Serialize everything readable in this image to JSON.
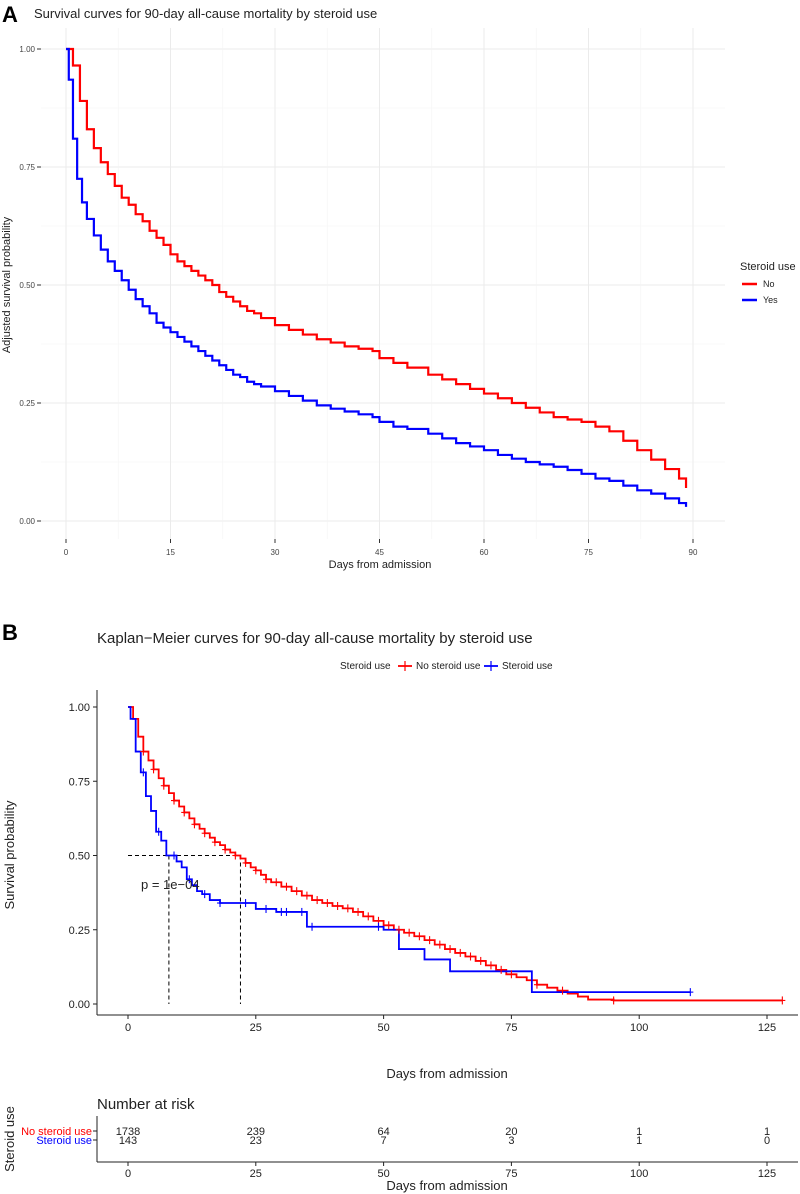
{
  "panel_a": {
    "label": "A"
  },
  "panel_b": {
    "label": "B"
  },
  "chart_data": [
    {
      "type": "line",
      "title": "Survival curves for 90-day all-cause mortality by steroid use",
      "xlabel": "Days from admission",
      "ylabel": "Adjusted survival probability",
      "xlim": [
        0,
        90
      ],
      "ylim": [
        0,
        1
      ],
      "xticks": [
        "0",
        "15",
        "30",
        "45",
        "60",
        "75",
        "90"
      ],
      "yticks": [
        "0.00",
        "0.25",
        "0.50",
        "0.75",
        "1.00"
      ],
      "grid": true,
      "legend": {
        "title": "Steroid use",
        "position": "right",
        "entries": [
          "No",
          "Yes"
        ]
      },
      "series": [
        {
          "name": "No",
          "color": "#ff0000",
          "x": [
            0,
            1,
            2,
            3,
            4,
            5,
            6,
            7,
            8,
            9,
            10,
            11,
            12,
            13,
            14,
            15,
            16,
            17,
            18,
            19,
            20,
            21,
            22,
            23,
            24,
            25,
            26,
            27,
            28,
            30,
            32,
            34,
            36,
            38,
            40,
            42,
            44,
            45,
            47,
            49,
            52,
            54,
            56,
            58,
            60,
            62,
            64,
            66,
            68,
            70,
            72,
            74,
            76,
            78,
            80,
            82,
            84,
            86,
            88,
            89
          ],
          "y": [
            1.0,
            0.965,
            0.89,
            0.83,
            0.79,
            0.76,
            0.735,
            0.71,
            0.685,
            0.67,
            0.65,
            0.635,
            0.615,
            0.6,
            0.585,
            0.565,
            0.55,
            0.54,
            0.53,
            0.52,
            0.51,
            0.5,
            0.485,
            0.475,
            0.465,
            0.455,
            0.445,
            0.44,
            0.43,
            0.415,
            0.405,
            0.395,
            0.385,
            0.378,
            0.37,
            0.365,
            0.36,
            0.345,
            0.335,
            0.325,
            0.31,
            0.3,
            0.29,
            0.28,
            0.27,
            0.26,
            0.25,
            0.24,
            0.23,
            0.22,
            0.215,
            0.21,
            0.2,
            0.19,
            0.17,
            0.15,
            0.13,
            0.11,
            0.09,
            0.07
          ]
        },
        {
          "name": "Yes",
          "color": "#0000ff",
          "x": [
            0,
            0.4,
            1,
            1.6,
            2.3,
            3,
            4,
            5,
            6,
            7,
            8,
            9,
            10,
            11,
            12,
            13,
            14,
            15,
            16,
            17,
            18,
            19,
            20,
            21,
            22,
            23,
            24,
            25,
            26,
            27,
            28,
            30,
            32,
            34,
            36,
            38,
            40,
            42,
            44,
            45,
            47,
            49,
            52,
            54,
            56,
            58,
            60,
            62,
            64,
            66,
            68,
            70,
            72,
            74,
            76,
            78,
            80,
            82,
            84,
            86,
            88,
            89
          ],
          "y": [
            1.0,
            0.935,
            0.81,
            0.725,
            0.675,
            0.64,
            0.605,
            0.575,
            0.55,
            0.53,
            0.51,
            0.49,
            0.47,
            0.455,
            0.44,
            0.42,
            0.41,
            0.4,
            0.39,
            0.38,
            0.37,
            0.36,
            0.35,
            0.34,
            0.33,
            0.32,
            0.31,
            0.305,
            0.295,
            0.29,
            0.285,
            0.275,
            0.265,
            0.255,
            0.245,
            0.238,
            0.232,
            0.226,
            0.22,
            0.21,
            0.2,
            0.195,
            0.185,
            0.175,
            0.165,
            0.158,
            0.15,
            0.14,
            0.132,
            0.125,
            0.12,
            0.115,
            0.108,
            0.1,
            0.09,
            0.085,
            0.075,
            0.065,
            0.058,
            0.048,
            0.038,
            0.03
          ]
        }
      ]
    },
    {
      "type": "line",
      "title": "Kaplan−Meier curves for 90-day all-cause mortality by steroid use",
      "xlabel": "Days from admission",
      "ylabel": "Survival probability",
      "xlim": [
        0,
        130
      ],
      "ylim": [
        0,
        1
      ],
      "xticks": [
        "0",
        "25",
        "50",
        "75",
        "100",
        "125"
      ],
      "yticks": [
        "0.00",
        "0.25",
        "0.50",
        "0.75",
        "1.00"
      ],
      "grid": false,
      "legend": {
        "title": "Steroid use",
        "position": "top",
        "entries": [
          "No steroid use",
          "Steroid use"
        ]
      },
      "annotation": "p = 1e−04",
      "median_lines": [
        8,
        22
      ],
      "series": [
        {
          "name": "No steroid use",
          "color": "#ff0000",
          "x": [
            0,
            1,
            2,
            3,
            4,
            5,
            6,
            7,
            8,
            9,
            10,
            11,
            12,
            13,
            14,
            15,
            16,
            17,
            18,
            19,
            20,
            21,
            22,
            23,
            24,
            25,
            26,
            27,
            28,
            30,
            32,
            34,
            36,
            38,
            40,
            42,
            44,
            46,
            48,
            50,
            52,
            54,
            56,
            58,
            60,
            62,
            64,
            66,
            68,
            70,
            72,
            74,
            76,
            78,
            80,
            82,
            84,
            86,
            88,
            90,
            95,
            100,
            128
          ],
          "y": [
            1.0,
            0.96,
            0.9,
            0.85,
            0.82,
            0.79,
            0.76,
            0.735,
            0.71,
            0.685,
            0.665,
            0.645,
            0.625,
            0.605,
            0.59,
            0.575,
            0.56,
            0.545,
            0.535,
            0.52,
            0.51,
            0.5,
            0.49,
            0.475,
            0.46,
            0.45,
            0.435,
            0.42,
            0.41,
            0.395,
            0.38,
            0.365,
            0.35,
            0.34,
            0.33,
            0.322,
            0.31,
            0.295,
            0.28,
            0.265,
            0.25,
            0.24,
            0.228,
            0.215,
            0.2,
            0.185,
            0.172,
            0.16,
            0.145,
            0.13,
            0.115,
            0.1,
            0.09,
            0.08,
            0.065,
            0.055,
            0.045,
            0.035,
            0.025,
            0.015,
            0.012,
            0.012,
            0.012
          ],
          "censor_x": [
            3,
            5,
            7,
            9,
            11,
            13,
            15,
            17,
            19,
            21,
            23,
            25,
            27,
            29,
            31,
            33,
            35,
            37,
            39,
            41,
            43,
            45,
            47,
            49,
            51,
            53,
            55,
            57,
            59,
            61,
            63,
            65,
            67,
            69,
            71,
            73,
            75,
            80,
            85,
            95,
            128
          ]
        },
        {
          "name": "Steroid use",
          "color": "#0000ff",
          "x": [
            0,
            0.5,
            1.5,
            2.5,
            3.5,
            4.5,
            5.5,
            6.5,
            7.5,
            9.5,
            10.5,
            11.5,
            12.5,
            13.5,
            14.5,
            16,
            18,
            20,
            25,
            29,
            35,
            50,
            53,
            58,
            63,
            79,
            110
          ],
          "y": [
            1.0,
            0.96,
            0.85,
            0.78,
            0.7,
            0.65,
            0.58,
            0.55,
            0.5,
            0.48,
            0.46,
            0.42,
            0.4,
            0.38,
            0.37,
            0.35,
            0.34,
            0.34,
            0.32,
            0.31,
            0.26,
            0.25,
            0.185,
            0.15,
            0.11,
            0.04,
            0.04
          ],
          "censor_x": [
            3,
            6,
            9,
            12,
            15,
            18,
            23,
            27,
            30,
            31,
            34,
            36,
            49,
            110
          ]
        }
      ]
    }
  ],
  "risk_table": {
    "title": "Number at risk",
    "ylabel": "Steroid use",
    "xlabel": "Days from admission",
    "times": [
      "0",
      "25",
      "50",
      "75",
      "100",
      "125"
    ],
    "rows": [
      {
        "label": "No steroid use",
        "color": "#ff0000",
        "counts": [
          "1738",
          "239",
          "64",
          "20",
          "1",
          "1"
        ]
      },
      {
        "label": "Steroid use",
        "color": "#0000ff",
        "counts": [
          "143",
          "23",
          "7",
          "3",
          "1",
          "0"
        ]
      }
    ]
  }
}
